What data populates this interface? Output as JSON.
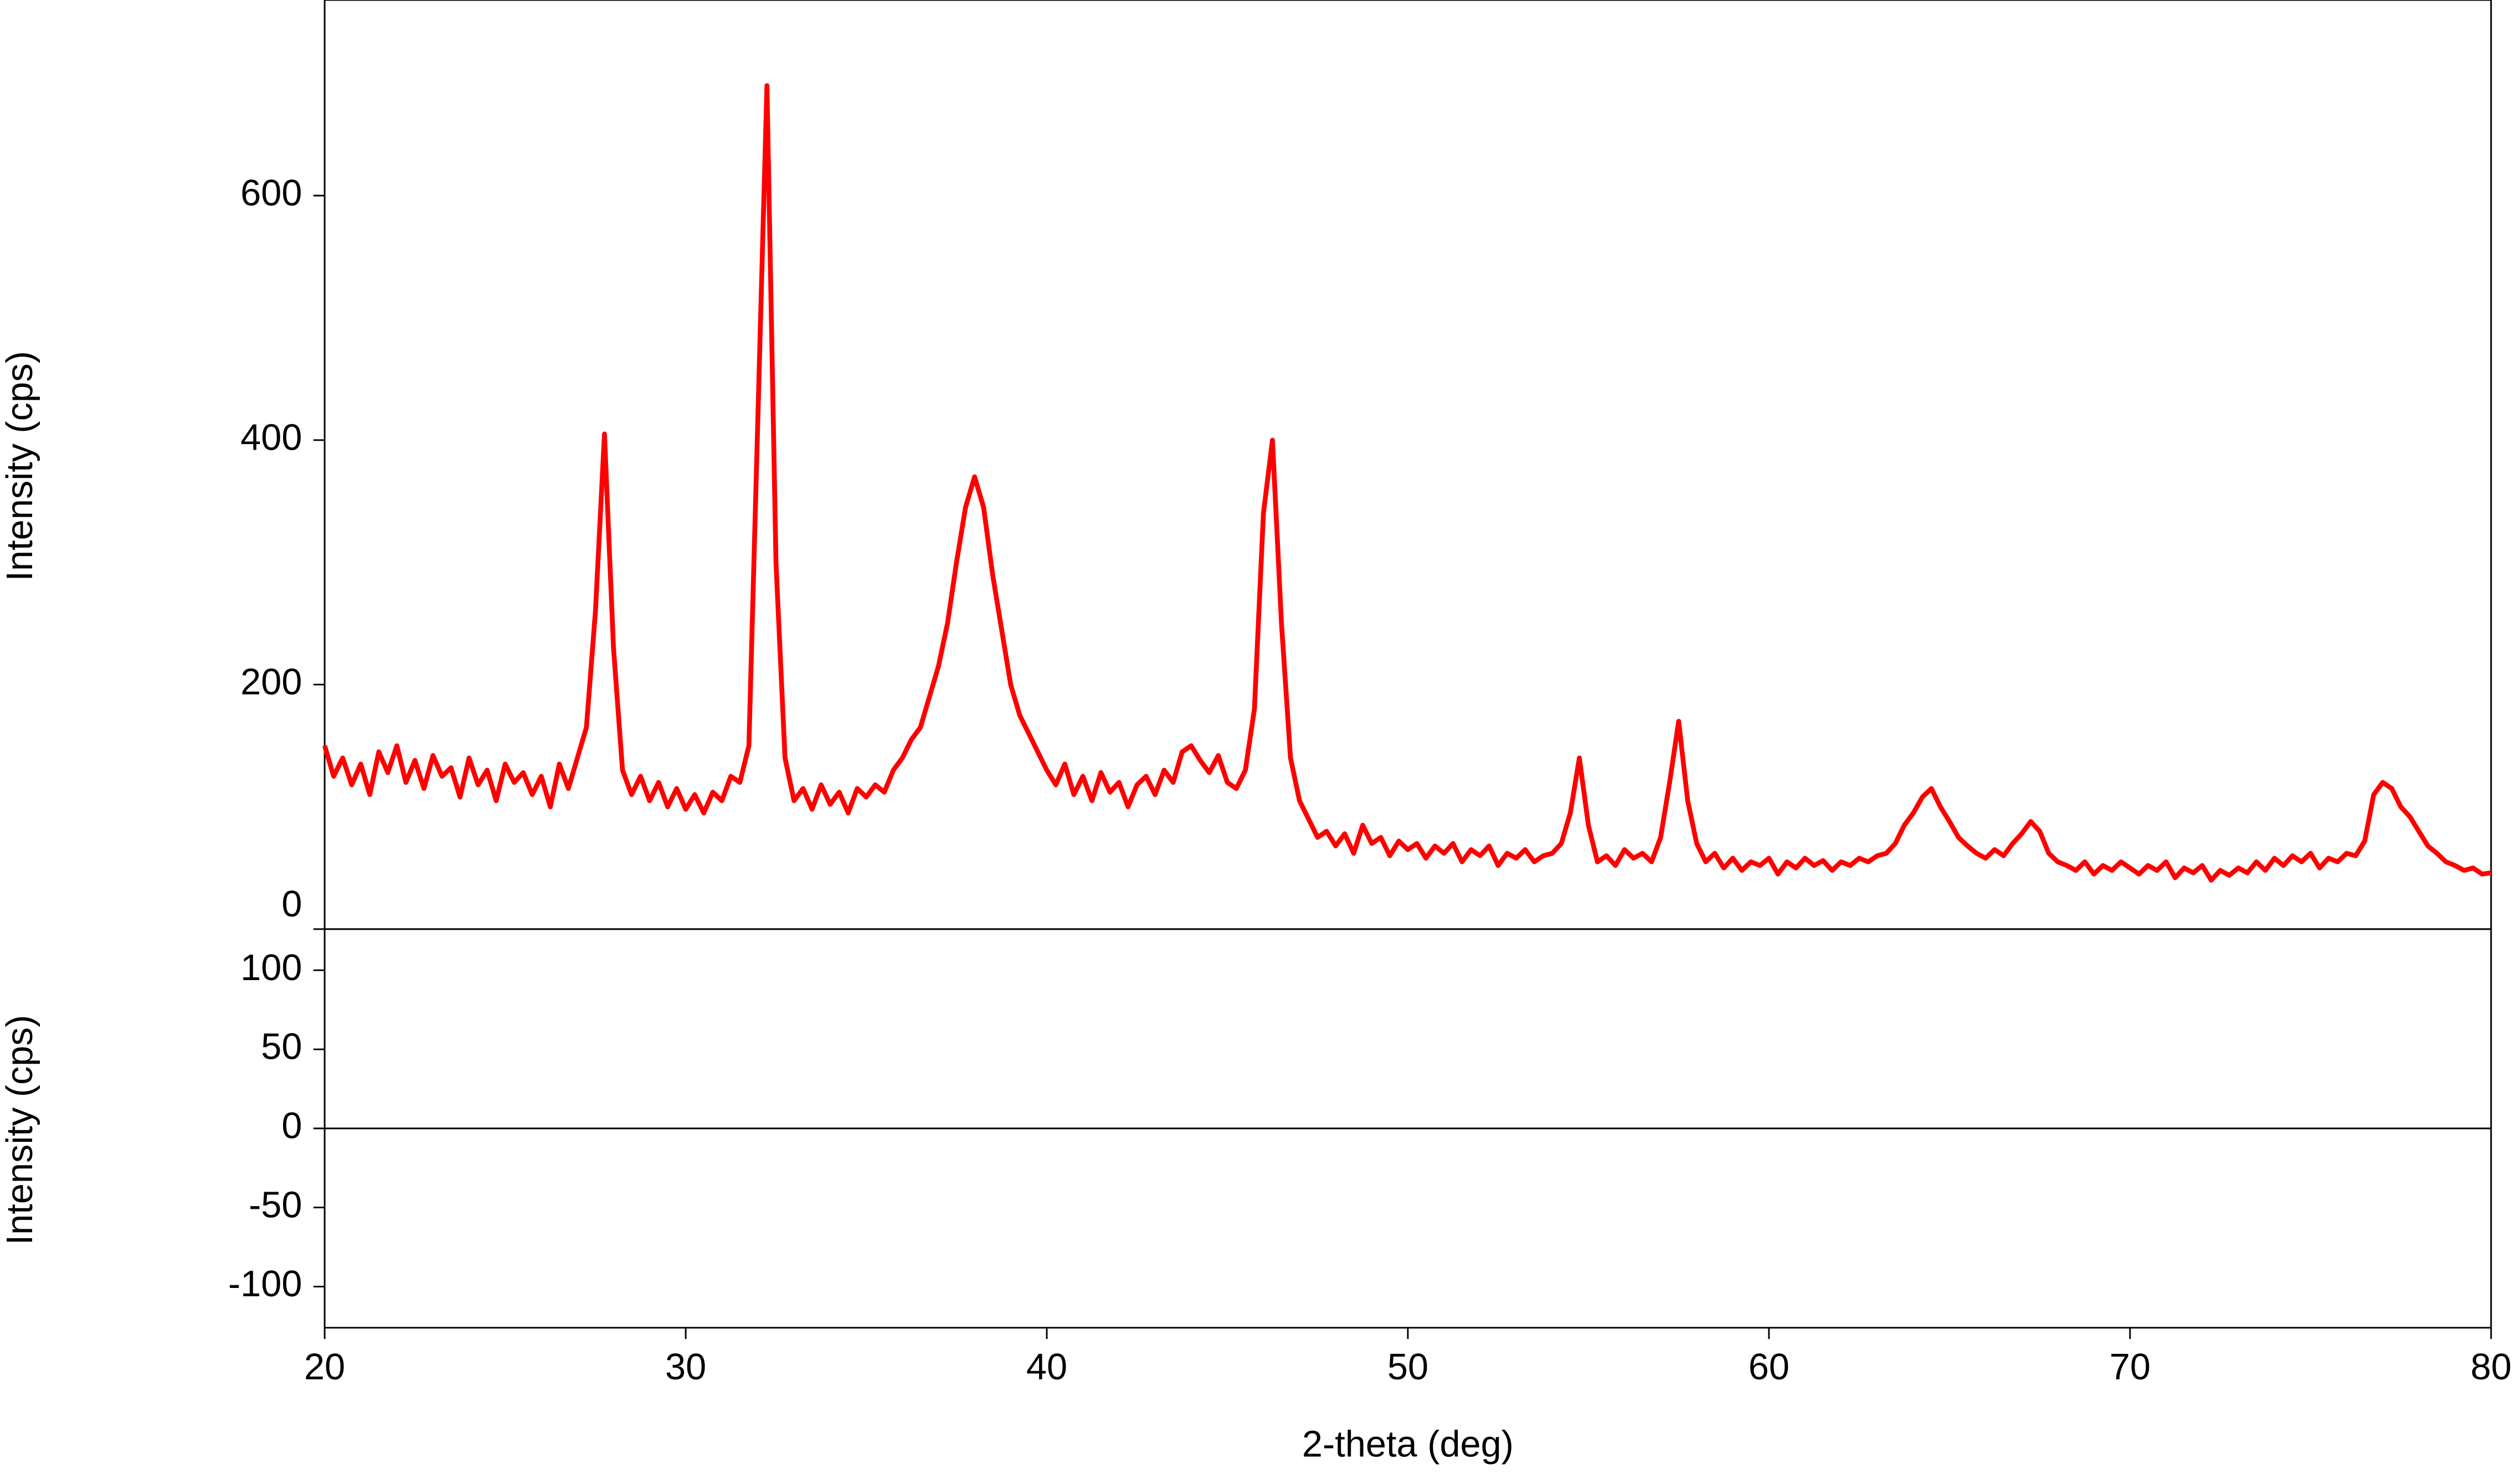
{
  "chart_data": [
    {
      "type": "line",
      "ylabel": "Intensity (cps)",
      "xlabel": "2-theta (deg)",
      "xlim": [
        20,
        80
      ],
      "xticks": [
        20,
        30,
        40,
        50,
        60,
        70,
        80
      ],
      "ylim": [
        0,
        760
      ],
      "yticks": [
        0,
        200,
        400,
        600
      ],
      "x": [
        20,
        20.25,
        20.5,
        20.75,
        21,
        21.25,
        21.5,
        21.75,
        22,
        22.25,
        22.5,
        22.75,
        23,
        23.25,
        23.5,
        23.75,
        24,
        24.25,
        24.5,
        24.75,
        25,
        25.25,
        25.5,
        25.75,
        26,
        26.25,
        26.5,
        26.75,
        27,
        27.25,
        27.5,
        27.75,
        28,
        28.25,
        28.5,
        28.75,
        29,
        29.25,
        29.5,
        29.75,
        30,
        30.25,
        30.5,
        30.75,
        31,
        31.25,
        31.5,
        31.75,
        32,
        32.25,
        32.5,
        32.75,
        33,
        33.25,
        33.5,
        33.75,
        34,
        34.25,
        34.5,
        34.75,
        35,
        35.25,
        35.5,
        35.75,
        36,
        36.25,
        36.5,
        36.75,
        37,
        37.25,
        37.5,
        37.75,
        38,
        38.25,
        38.5,
        38.75,
        39,
        39.25,
        39.5,
        39.75,
        40,
        40.25,
        40.5,
        40.75,
        41,
        41.25,
        41.5,
        41.75,
        42,
        42.25,
        42.5,
        42.75,
        43,
        43.25,
        43.5,
        43.75,
        44,
        44.25,
        44.5,
        44.75,
        45,
        45.25,
        45.5,
        45.75,
        46,
        46.25,
        46.5,
        46.75,
        47,
        47.25,
        47.5,
        47.75,
        48,
        48.25,
        48.5,
        48.75,
        49,
        49.25,
        49.5,
        49.75,
        50,
        50.25,
        50.5,
        50.75,
        51,
        51.25,
        51.5,
        51.75,
        52,
        52.25,
        52.5,
        52.75,
        53,
        53.25,
        53.5,
        53.75,
        54,
        54.25,
        54.5,
        54.75,
        55,
        55.25,
        55.5,
        55.75,
        56,
        56.25,
        56.5,
        56.75,
        57,
        57.25,
        57.5,
        57.75,
        58,
        58.25,
        58.5,
        58.75,
        59,
        59.25,
        59.5,
        59.75,
        60,
        60.25,
        60.5,
        60.75,
        61,
        61.25,
        61.5,
        61.75,
        62,
        62.25,
        62.5,
        62.75,
        63,
        63.25,
        63.5,
        63.75,
        64,
        64.25,
        64.5,
        64.75,
        65,
        65.25,
        65.5,
        65.75,
        66,
        66.25,
        66.5,
        66.75,
        67,
        67.25,
        67.5,
        67.75,
        68,
        68.25,
        68.5,
        68.75,
        69,
        69.25,
        69.5,
        69.75,
        70,
        70.25,
        70.5,
        70.75,
        71,
        71.25,
        71.5,
        71.75,
        72,
        72.25,
        72.5,
        72.75,
        73,
        73.25,
        73.5,
        73.75,
        74,
        74.25,
        74.5,
        74.75,
        75,
        75.25,
        75.5,
        75.75,
        76,
        76.25,
        76.5,
        76.75,
        77,
        77.25,
        77.5,
        77.75,
        78,
        78.25,
        78.5,
        78.75,
        79,
        79.25,
        79.5,
        79.75,
        80
      ],
      "series": [
        {
          "color": "#ff0000",
          "values": [
            150,
            125,
            140,
            118,
            135,
            110,
            145,
            128,
            150,
            120,
            138,
            115,
            142,
            125,
            132,
            108,
            140,
            118,
            130,
            105,
            135,
            120,
            128,
            110,
            125,
            100,
            135,
            115,
            140,
            165,
            260,
            405,
            230,
            130,
            110,
            125,
            105,
            120,
            100,
            115,
            98,
            110,
            95,
            112,
            105,
            125,
            120,
            150,
            420,
            690,
            300,
            140,
            105,
            115,
            98,
            118,
            102,
            112,
            95,
            115,
            108,
            118,
            112,
            130,
            140,
            155,
            165,
            190,
            215,
            250,
            300,
            345,
            370,
            345,
            290,
            245,
            200,
            175,
            160,
            145,
            130,
            118,
            135,
            110,
            125,
            105,
            128,
            112,
            120,
            100,
            118,
            125,
            110,
            130,
            120,
            145,
            150,
            138,
            128,
            142,
            120,
            115,
            130,
            180,
            340,
            400,
            250,
            140,
            105,
            90,
            75,
            80,
            68,
            78,
            62,
            85,
            70,
            75,
            60,
            72,
            65,
            70,
            58,
            68,
            62,
            70,
            55,
            65,
            60,
            68,
            52,
            62,
            58,
            65,
            55,
            60,
            62,
            70,
            95,
            140,
            85,
            55,
            60,
            52,
            65,
            58,
            62,
            55,
            75,
            120,
            170,
            105,
            70,
            55,
            62,
            50,
            58,
            48,
            55,
            52,
            58,
            45,
            55,
            50,
            58,
            52,
            56,
            48,
            55,
            52,
            58,
            55,
            60,
            62,
            70,
            85,
            95,
            108,
            115,
            100,
            88,
            75,
            68,
            62,
            58,
            65,
            60,
            70,
            78,
            88,
            80,
            62,
            55,
            52,
            48,
            55,
            45,
            52,
            48,
            55,
            50,
            45,
            52,
            48,
            55,
            42,
            50,
            46,
            52,
            40,
            48,
            44,
            50,
            46,
            55,
            48,
            58,
            52,
            60,
            55,
            62,
            50,
            58,
            55,
            62,
            60,
            72,
            110,
            120,
            115,
            100,
            92,
            80,
            68,
            62,
            55,
            52,
            48,
            50,
            45,
            46
          ]
        }
      ]
    },
    {
      "type": "line",
      "ylabel": "Intensity (cps)",
      "xlim": [
        20,
        80
      ],
      "ylim": [
        -126,
        126
      ],
      "yticks": [
        100,
        50,
        0,
        -50,
        -100
      ]
    }
  ]
}
